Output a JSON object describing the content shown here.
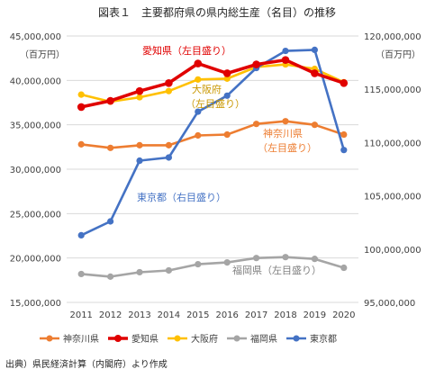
{
  "title": "図表１　主要都府県の県内総生産（名目）の推移",
  "left_unit": "（百万円）",
  "right_unit": "（百万円）",
  "source": "出典）県民経済計算（内閣府）より作成",
  "annotations": {
    "aichi": "愛知県（左目盛り）",
    "osaka_1": "大阪府",
    "osaka_2": "（左目盛り）",
    "kanagawa_1": "神奈川県",
    "kanagawa_2": "（左目盛り）",
    "tokyo": "東京都（右目盛り）",
    "fukuoka": "福岡県（左目盛り）"
  },
  "colors": {
    "kanagawa": "#ed7d31",
    "aichi": "#e00000",
    "osaka": "#ffc000",
    "fukuoka": "#a5a5a5",
    "tokyo": "#4472c4",
    "grid": "#d9d9d9",
    "axis_text": "#404040"
  },
  "chart_data": {
    "type": "line",
    "title": "図表１　主要都府県の県内総生産（名目）の推移",
    "categories": [
      "2011",
      "2012",
      "2013",
      "2014",
      "2015",
      "2016",
      "2017",
      "2018",
      "2019",
      "2020"
    ],
    "y_left": {
      "unit": "（百万円）",
      "ylim": [
        15000000,
        45000000
      ],
      "ticks": [
        15000000,
        20000000,
        25000000,
        30000000,
        35000000,
        40000000,
        45000000
      ],
      "tick_labels": [
        "15,000,000",
        "20,000,000",
        "25,000,000",
        "30,000,000",
        "35,000,000",
        "40,000,000",
        "45,000,000"
      ]
    },
    "y_right": {
      "unit": "（百万円）",
      "ylim": [
        95000000,
        120000000
      ],
      "ticks": [
        95000000,
        100000000,
        105000000,
        110000000,
        115000000,
        120000000
      ],
      "tick_labels": [
        "95,000,000",
        "100,000,000",
        "105,000,000",
        "110,000,000",
        "115,000,000",
        "120,000,000"
      ]
    },
    "grid": true,
    "legend_position": "bottom",
    "series": [
      {
        "name": "神奈川県",
        "axis": "left",
        "color_key": "kanagawa",
        "width": 2,
        "values": [
          32800000,
          32400000,
          32700000,
          32700000,
          33800000,
          33900000,
          35100000,
          35400000,
          35000000,
          33900000
        ]
      },
      {
        "name": "愛知県",
        "axis": "left",
        "color_key": "aichi",
        "width": 3,
        "values": [
          37000000,
          37700000,
          38800000,
          39700000,
          41900000,
          40800000,
          41800000,
          42300000,
          40800000,
          39700000
        ]
      },
      {
        "name": "大阪府",
        "axis": "left",
        "color_key": "osaka",
        "width": 2,
        "values": [
          38400000,
          37600000,
          38100000,
          38800000,
          40100000,
          40200000,
          41500000,
          41800000,
          41300000,
          39800000
        ]
      },
      {
        "name": "福岡県",
        "axis": "left",
        "color_key": "fukuoka",
        "width": 2,
        "values": [
          18200000,
          17900000,
          18400000,
          18600000,
          19300000,
          19500000,
          20000000,
          20100000,
          19900000,
          18900000
        ]
      },
      {
        "name": "東京都",
        "axis": "right",
        "color_key": "tokyo",
        "width": 2,
        "values": [
          101300000,
          102600000,
          108300000,
          108600000,
          112900000,
          114400000,
          117000000,
          118600000,
          118700000,
          109300000
        ]
      }
    ]
  }
}
